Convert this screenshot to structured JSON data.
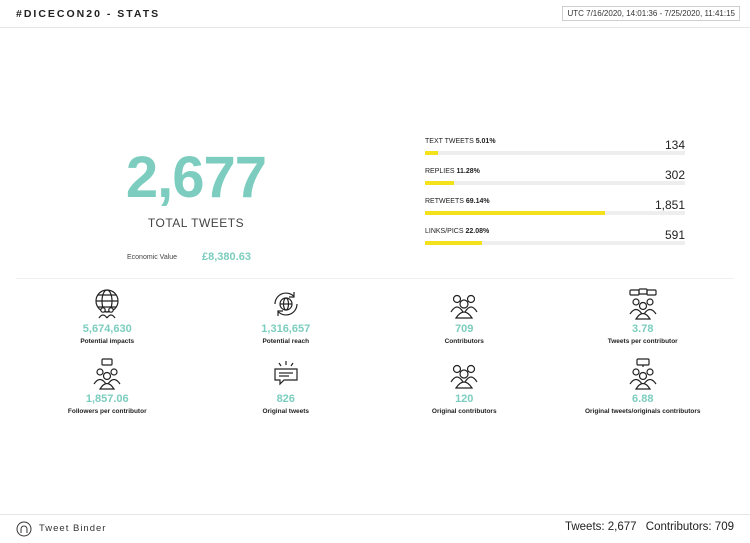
{
  "header": {
    "title": "#DICECON20 - STATS",
    "date_range": "UTC 7/16/2020, 14:01:36 - 7/25/2020, 11:41:15"
  },
  "summary": {
    "total_tweets": "2,677",
    "total_label": "TOTAL TWEETS",
    "economic_label": "Economic Value",
    "economic_value": "£8,380.63"
  },
  "breakdown": [
    {
      "label": "TEXT TWEETS",
      "percent": "5.01%",
      "count": "134",
      "fill_percent": 5.01
    },
    {
      "label": "REPLIES",
      "percent": "11.28%",
      "count": "302",
      "fill_percent": 11.28
    },
    {
      "label": "RETWEETS",
      "percent": "69.14%",
      "count": "1,851",
      "fill_percent": 69.14
    },
    {
      "label": "LINKS/PICS",
      "percent": "22.08%",
      "count": "591",
      "fill_percent": 22.08
    }
  ],
  "bar_color": "#f2e11b",
  "accent_color": "#7ccdbf",
  "stats": [
    {
      "icon": "globe-people-icon",
      "value": "5,674,630",
      "label": "Potential impacts"
    },
    {
      "icon": "globe-refresh-icon",
      "value": "1,316,657",
      "label": "Potential reach"
    },
    {
      "icon": "group-icon",
      "value": "709",
      "label": "Contributors"
    },
    {
      "icon": "group-tweets-icon",
      "value": "3.78",
      "label": "Tweets per contributor"
    },
    {
      "icon": "group-followers-icon",
      "value": "1,857.06",
      "label": "Followers per contributor"
    },
    {
      "icon": "speech-bubble-icon",
      "value": "826",
      "label": "Original tweets"
    },
    {
      "icon": "group-original-icon",
      "value": "120",
      "label": "Original contributors"
    },
    {
      "icon": "group-ratio-icon",
      "value": "6.88",
      "label": "Original tweets/originals contributors"
    }
  ],
  "footer": {
    "brand": "Tweet Binder",
    "tweets": "Tweets: 2,677",
    "contributors": "Contributors: 709"
  }
}
